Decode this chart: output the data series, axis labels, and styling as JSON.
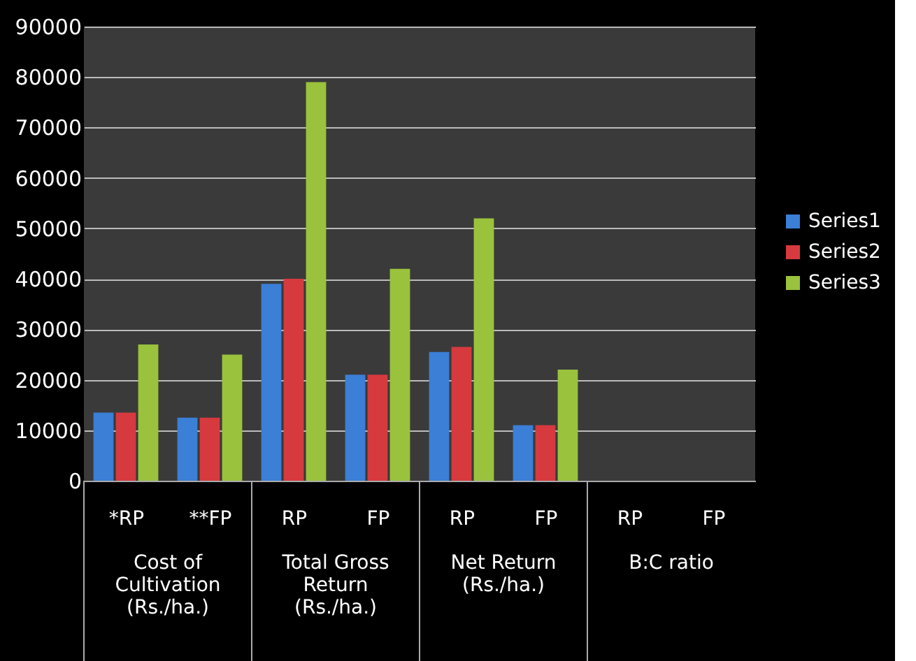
{
  "chart_data": {
    "type": "bar",
    "categories": [
      "*RP",
      "**FP",
      "RP",
      "FP",
      "RP",
      "FP",
      "RP",
      "FP"
    ],
    "series": [
      {
        "name": "Series1",
        "color": "#3b7fd6",
        "values": [
          13500,
          12500,
          39000,
          21000,
          25500,
          11000,
          0,
          0
        ]
      },
      {
        "name": "Series2",
        "color": "#d63a3f",
        "values": [
          13500,
          12500,
          40000,
          21000,
          26500,
          11000,
          0,
          0
        ]
      },
      {
        "name": "Series3",
        "color": "#9ac23c",
        "values": [
          27000,
          25000,
          79000,
          42000,
          52000,
          22000,
          0,
          0
        ]
      }
    ],
    "annotations": [
      "Cost of\nCultivation\n(Rs./ha.)",
      "Total Gross\nReturn\n(Rs./ha.)",
      "Net Return\n(Rs./ha.)",
      "B:C ratio"
    ],
    "ylim": [
      0,
      90000
    ],
    "yticks": [
      0,
      10000,
      20000,
      30000,
      40000,
      50000,
      60000,
      70000,
      80000,
      90000
    ],
    "grid": "y",
    "legend": "right"
  }
}
